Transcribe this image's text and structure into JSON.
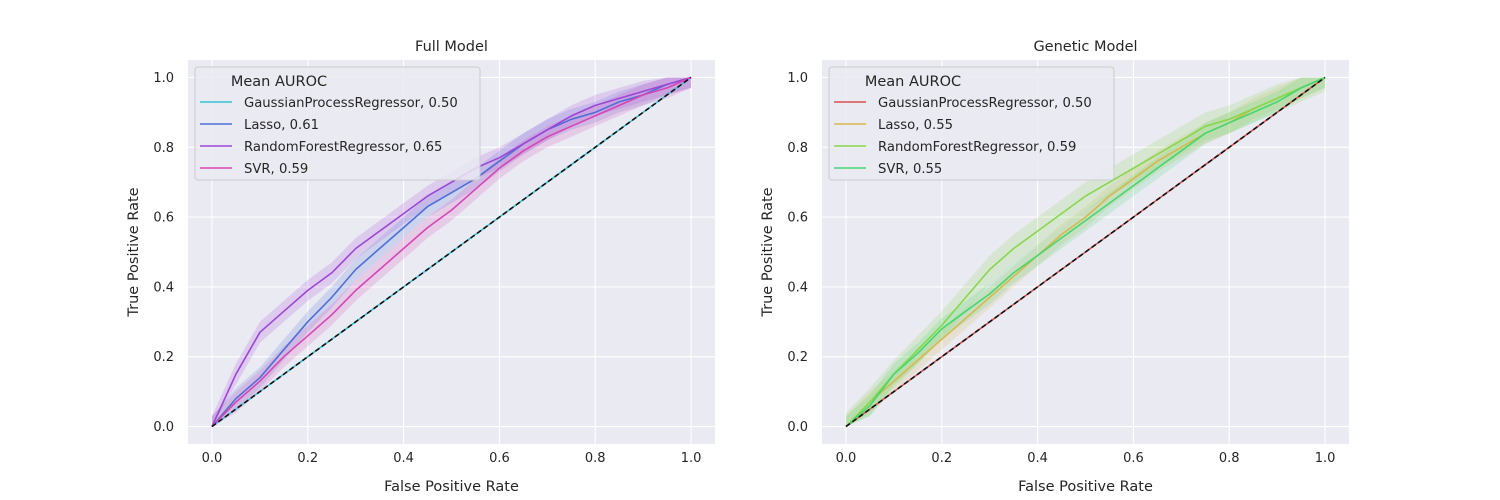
{
  "chart_data": [
    {
      "type": "line",
      "title": "Full Model",
      "xlabel": "False Positive Rate",
      "ylabel": "True Positive Rate",
      "xlim": [
        -0.05,
        1.05
      ],
      "ylim": [
        -0.05,
        1.05
      ],
      "xticks": [
        "0.0",
        "0.2",
        "0.4",
        "0.6",
        "0.8",
        "1.0"
      ],
      "yticks": [
        "0.0",
        "0.2",
        "0.4",
        "0.6",
        "0.8",
        "1.0"
      ],
      "grid": true,
      "legend_title": "Mean AUROC",
      "legend_position": "upper-left",
      "x": [
        0.0,
        0.05,
        0.1,
        0.15,
        0.2,
        0.25,
        0.3,
        0.35,
        0.4,
        0.45,
        0.5,
        0.55,
        0.6,
        0.65,
        0.7,
        0.75,
        0.8,
        0.85,
        0.9,
        0.95,
        1.0
      ],
      "series": [
        {
          "name": "GaussianProcessRegressor, 0.50",
          "color": "#36c3d8",
          "band": 0.0,
          "values": [
            0.0,
            0.05,
            0.1,
            0.15,
            0.2,
            0.25,
            0.3,
            0.35,
            0.4,
            0.45,
            0.5,
            0.55,
            0.6,
            0.65,
            0.7,
            0.75,
            0.8,
            0.85,
            0.9,
            0.95,
            1.0
          ]
        },
        {
          "name": "Lasso, 0.61",
          "color": "#4f6fd8",
          "band": 0.03,
          "values": [
            0.0,
            0.08,
            0.14,
            0.22,
            0.3,
            0.37,
            0.45,
            0.51,
            0.57,
            0.63,
            0.67,
            0.71,
            0.76,
            0.81,
            0.85,
            0.88,
            0.9,
            0.93,
            0.95,
            0.98,
            1.0
          ]
        },
        {
          "name": "RandomForestRegressor, 0.65",
          "color": "#9e45d8",
          "band": 0.03,
          "values": [
            0.0,
            0.15,
            0.27,
            0.33,
            0.39,
            0.44,
            0.51,
            0.56,
            0.61,
            0.66,
            0.7,
            0.74,
            0.77,
            0.81,
            0.85,
            0.89,
            0.92,
            0.94,
            0.96,
            0.98,
            1.0
          ]
        },
        {
          "name": "SVR, 0.59",
          "color": "#d844b8",
          "band": 0.03,
          "values": [
            0.0,
            0.07,
            0.13,
            0.2,
            0.26,
            0.32,
            0.39,
            0.45,
            0.51,
            0.57,
            0.62,
            0.68,
            0.74,
            0.79,
            0.83,
            0.86,
            0.89,
            0.92,
            0.95,
            0.97,
            1.0
          ]
        }
      ]
    },
    {
      "type": "line",
      "title": "Genetic Model",
      "xlabel": "False Positive Rate",
      "ylabel": "True Positive Rate",
      "xlim": [
        -0.05,
        1.05
      ],
      "ylim": [
        -0.05,
        1.05
      ],
      "xticks": [
        "0.0",
        "0.2",
        "0.4",
        "0.6",
        "0.8",
        "1.0"
      ],
      "yticks": [
        "0.0",
        "0.2",
        "0.4",
        "0.6",
        "0.8",
        "1.0"
      ],
      "grid": true,
      "legend_title": "Mean AUROC",
      "legend_position": "upper-left",
      "x": [
        0.0,
        0.05,
        0.1,
        0.15,
        0.2,
        0.25,
        0.3,
        0.35,
        0.4,
        0.45,
        0.5,
        0.55,
        0.6,
        0.65,
        0.7,
        0.75,
        0.8,
        0.85,
        0.9,
        0.95,
        1.0
      ],
      "series": [
        {
          "name": "GaussianProcessRegressor, 0.50",
          "color": "#d8524f",
          "band": 0.0,
          "values": [
            0.0,
            0.05,
            0.1,
            0.15,
            0.2,
            0.25,
            0.3,
            0.35,
            0.4,
            0.45,
            0.5,
            0.55,
            0.6,
            0.65,
            0.7,
            0.75,
            0.8,
            0.85,
            0.9,
            0.95,
            1.0
          ]
        },
        {
          "name": "Lasso, 0.55",
          "color": "#d8b84a",
          "band": 0.03,
          "values": [
            0.0,
            0.07,
            0.13,
            0.19,
            0.25,
            0.31,
            0.37,
            0.43,
            0.49,
            0.55,
            0.6,
            0.66,
            0.71,
            0.76,
            0.8,
            0.84,
            0.87,
            0.91,
            0.94,
            0.97,
            1.0
          ]
        },
        {
          "name": "RandomForestRegressor, 0.59",
          "color": "#86d84a",
          "band": 0.04,
          "values": [
            0.0,
            0.07,
            0.15,
            0.22,
            0.29,
            0.37,
            0.45,
            0.51,
            0.56,
            0.61,
            0.66,
            0.7,
            0.74,
            0.78,
            0.82,
            0.86,
            0.88,
            0.91,
            0.94,
            0.97,
            1.0
          ]
        },
        {
          "name": "SVR, 0.55",
          "color": "#44d870",
          "band": 0.03,
          "values": [
            0.0,
            0.06,
            0.15,
            0.21,
            0.28,
            0.33,
            0.38,
            0.44,
            0.49,
            0.54,
            0.59,
            0.64,
            0.69,
            0.74,
            0.79,
            0.84,
            0.87,
            0.9,
            0.93,
            0.97,
            1.0
          ]
        }
      ]
    }
  ]
}
